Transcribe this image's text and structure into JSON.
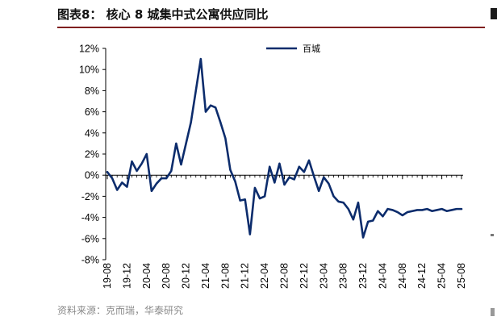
{
  "title": "图表8：  核心 8 城集中式公寓供应同比",
  "source": "资料来源：克而瑞，华泰研究",
  "colors": {
    "series": "#0c2c6c",
    "title_rule": "#7f1f1f",
    "axis": "#000000",
    "source_text": "#8a8a8a"
  },
  "chart_data": {
    "type": "line",
    "title": "",
    "xlabel": "",
    "ylabel": "",
    "ylim": [
      -8,
      12
    ],
    "yticks": [
      "12%",
      "10%",
      "8%",
      "6%",
      "4%",
      "2%",
      "0%",
      "-2%",
      "-4%",
      "-6%",
      "-8%"
    ],
    "xticks": [
      "19-08",
      "19-12",
      "20-04",
      "20-08",
      "20-12",
      "21-04",
      "21-08",
      "21-12",
      "22-04",
      "22-08",
      "22-12",
      "23-04",
      "23-08",
      "23-12",
      "24-04",
      "24-08",
      "24-12",
      "25-04",
      "25-08"
    ],
    "grid": false,
    "legend_position": "top-center",
    "x": [
      "19-08",
      "19-09",
      "19-10",
      "19-11",
      "19-12",
      "20-01",
      "20-02",
      "20-03",
      "20-04",
      "20-05",
      "20-06",
      "20-07",
      "20-08",
      "20-09",
      "20-10",
      "20-11",
      "20-12",
      "21-01",
      "21-02",
      "21-03",
      "21-04",
      "21-05",
      "21-06",
      "21-07",
      "21-08",
      "21-09",
      "21-10",
      "21-11",
      "21-12",
      "22-01",
      "22-02",
      "22-03",
      "22-04",
      "22-05",
      "22-06",
      "22-07",
      "22-08",
      "22-09",
      "22-10",
      "22-11",
      "22-12",
      "23-01",
      "23-02",
      "23-03",
      "23-04",
      "23-05",
      "23-06",
      "23-07",
      "23-08",
      "23-09",
      "23-10",
      "23-11",
      "23-12",
      "24-01",
      "24-02",
      "24-03",
      "24-04",
      "24-05",
      "24-06",
      "24-07",
      "24-08",
      "24-09",
      "24-10",
      "24-11",
      "24-12",
      "25-01",
      "25-02",
      "25-03",
      "25-04",
      "25-05",
      "25-06",
      "25-07",
      "25-08"
    ],
    "series": [
      {
        "name": "百城",
        "values": [
          0.3,
          -0.3,
          -1.4,
          -0.7,
          -1.1,
          1.3,
          0.4,
          1.1,
          2.0,
          -1.5,
          -0.8,
          -0.3,
          -0.3,
          0.4,
          3.0,
          1.0,
          3.0,
          5.0,
          8.0,
          11.0,
          6.0,
          6.6,
          6.4,
          5.0,
          3.5,
          0.5,
          -0.6,
          -2.4,
          -2.3,
          -5.6,
          -1.2,
          -2.2,
          -2.0,
          0.8,
          -0.7,
          1.1,
          -0.9,
          -0.2,
          -0.4,
          0.8,
          0.3,
          1.4,
          -0.1,
          -1.5,
          -0.2,
          -0.8,
          -2.0,
          -2.5,
          -2.6,
          -3.2,
          -4.2,
          -2.6,
          -5.9,
          -4.4,
          -4.3,
          -3.4,
          -3.9,
          -3.2,
          -3.3,
          -3.5,
          -3.8,
          -3.5,
          -3.4,
          -3.3,
          -3.3,
          -3.2,
          -3.4,
          -3.3,
          -3.2,
          -3.4,
          -3.3,
          -3.2,
          -3.2
        ]
      }
    ]
  }
}
